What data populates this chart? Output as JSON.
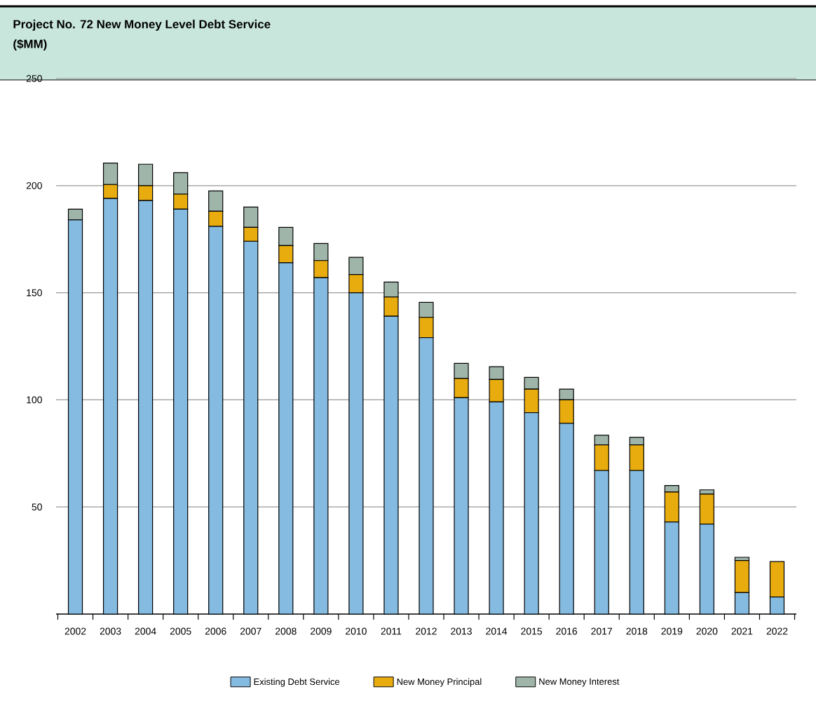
{
  "chart_data": {
    "type": "bar",
    "title": "Project No. 72 New Money Level Debt Service",
    "subtitle": "($MM)",
    "categories": [
      "2002",
      "2003",
      "2004",
      "2005",
      "2006",
      "2007",
      "2008",
      "2009",
      "2010",
      "2011",
      "2012",
      "2013",
      "2014",
      "2015",
      "2016",
      "2017",
      "2018",
      "2019",
      "2020",
      "2021",
      "2022"
    ],
    "stacked": true,
    "series": [
      {
        "name": "Existing Debt Service",
        "color": "#85bbe0",
        "values": [
          184,
          194,
          193,
          189,
          181,
          174,
          164,
          157,
          150,
          139,
          129,
          101,
          99,
          94,
          89,
          67,
          67,
          43,
          42,
          10,
          8
        ]
      },
      {
        "name": "New Money Principal",
        "color": "#e8ac0e",
        "values": [
          0,
          6.5,
          7,
          7,
          7,
          6.5,
          8,
          8,
          8.5,
          9,
          9.5,
          9,
          10.5,
          11,
          11,
          12,
          12,
          14,
          14,
          15,
          16.5
        ]
      },
      {
        "name": "New Money Interest",
        "color": "#9fb5aa",
        "values": [
          5,
          10,
          10,
          10,
          9.5,
          9.5,
          8.5,
          8,
          8,
          7,
          7,
          7,
          6,
          5.5,
          5,
          4.5,
          3.5,
          3,
          2,
          1.5,
          0
        ]
      }
    ],
    "ylim": [
      0,
      250
    ],
    "yticks": [
      50,
      100,
      150,
      200,
      250
    ],
    "grid": "y",
    "legend": "bottom"
  }
}
